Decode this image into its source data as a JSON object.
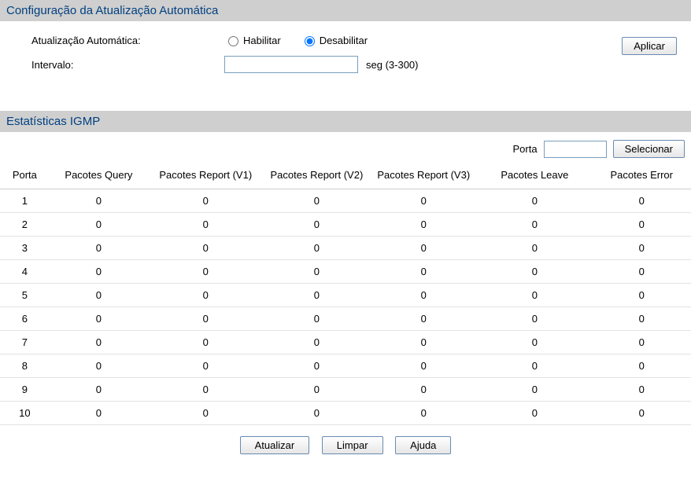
{
  "config": {
    "title": "Configuração da Atualização Automática",
    "autoRefreshLabel": "Atualização Automática:",
    "enableLabel": "Habilitar",
    "disableLabel": "Desabilitar",
    "intervalLabel": "Intervalo:",
    "intervalValue": "",
    "intervalUnit": "seg (3-300)",
    "applyLabel": "Aplicar",
    "selectedOption": "disable"
  },
  "stats": {
    "title": "Estatísticas IGMP",
    "filterLabel": "Porta",
    "filterValue": "",
    "selectLabel": "Selecionar",
    "columns": [
      "Porta",
      "Pacotes Query",
      "Pacotes Report (V1)",
      "Pacotes Report (V2)",
      "Pacotes Report (V3)",
      "Pacotes Leave",
      "Pacotes Error"
    ],
    "rows": [
      {
        "port": "1",
        "q": "0",
        "r1": "0",
        "r2": "0",
        "r3": "0",
        "lv": "0",
        "er": "0"
      },
      {
        "port": "2",
        "q": "0",
        "r1": "0",
        "r2": "0",
        "r3": "0",
        "lv": "0",
        "er": "0"
      },
      {
        "port": "3",
        "q": "0",
        "r1": "0",
        "r2": "0",
        "r3": "0",
        "lv": "0",
        "er": "0"
      },
      {
        "port": "4",
        "q": "0",
        "r1": "0",
        "r2": "0",
        "r3": "0",
        "lv": "0",
        "er": "0"
      },
      {
        "port": "5",
        "q": "0",
        "r1": "0",
        "r2": "0",
        "r3": "0",
        "lv": "0",
        "er": "0"
      },
      {
        "port": "6",
        "q": "0",
        "r1": "0",
        "r2": "0",
        "r3": "0",
        "lv": "0",
        "er": "0"
      },
      {
        "port": "7",
        "q": "0",
        "r1": "0",
        "r2": "0",
        "r3": "0",
        "lv": "0",
        "er": "0"
      },
      {
        "port": "8",
        "q": "0",
        "r1": "0",
        "r2": "0",
        "r3": "0",
        "lv": "0",
        "er": "0"
      },
      {
        "port": "9",
        "q": "0",
        "r1": "0",
        "r2": "0",
        "r3": "0",
        "lv": "0",
        "er": "0"
      },
      {
        "port": "10",
        "q": "0",
        "r1": "0",
        "r2": "0",
        "r3": "0",
        "lv": "0",
        "er": "0"
      }
    ]
  },
  "buttons": {
    "refresh": "Atualizar",
    "clear": "Limpar",
    "help": "Ajuda"
  }
}
